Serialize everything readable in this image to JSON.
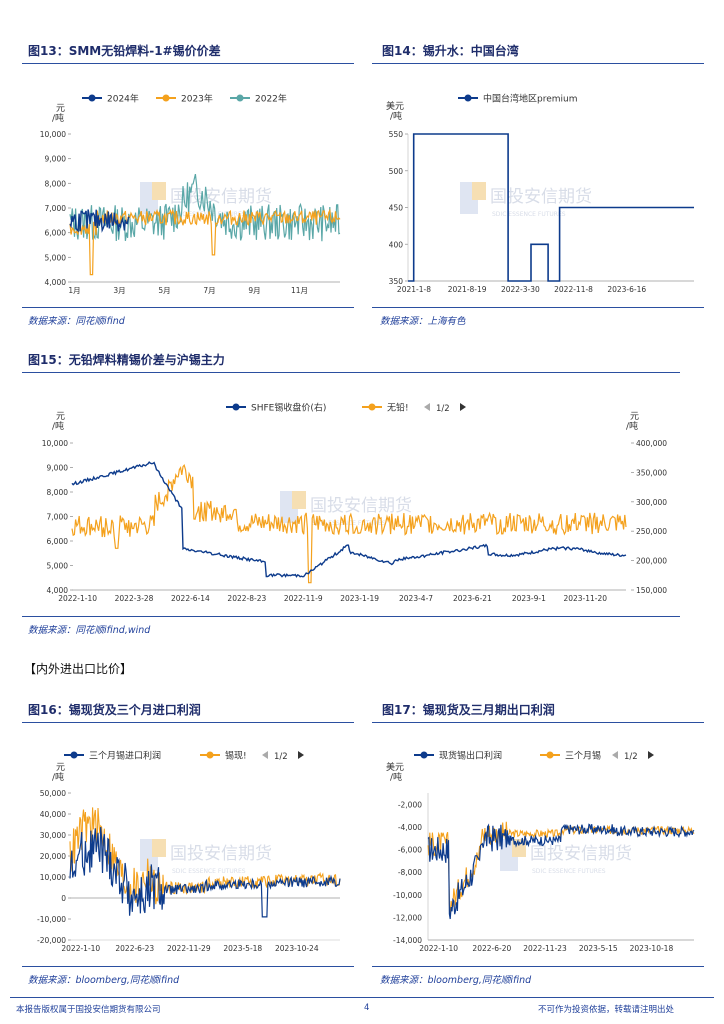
{
  "colors": {
    "navy": "#0d3b8c",
    "orange": "#f4a11d",
    "teal": "#5aa7a7",
    "axis": "#888888",
    "text": "#333333",
    "blue": "#2b4fa0"
  },
  "watermark": {
    "cn": "国投安信期货",
    "en": "SDIC ESSENCE FUTURES"
  },
  "fig13": {
    "title": "图13：SMM无铅焊料-1#锡价价差",
    "source": "数据来源：同花顺ifind",
    "chart_data": {
      "type": "line",
      "unit_lines": [
        "元",
        "/吨"
      ],
      "series": [
        {
          "name": "2024年",
          "color": "#0d3b8c"
        },
        {
          "name": "2023年",
          "color": "#f4a11d"
        },
        {
          "name": "2022年",
          "color": "#5aa7a7"
        }
      ],
      "y_ticks": [
        "10,000",
        "9,000",
        "8,000",
        "7,000",
        "6,000",
        "5,000",
        "4,000"
      ],
      "ylim": [
        4000,
        10000
      ],
      "x_ticks": [
        "1月",
        "3月",
        "5月",
        "7月",
        "9月",
        "11月"
      ]
    }
  },
  "fig14": {
    "title": "图14：锡升水：中国台湾",
    "source": "数据来源：上海有色",
    "chart_data": {
      "type": "line",
      "unit_lines": [
        "美元",
        "/吨"
      ],
      "series": [
        {
          "name": "中国台湾地区premium",
          "color": "#0d3b8c"
        }
      ],
      "y_ticks": [
        "550",
        "500",
        "450",
        "400",
        "350"
      ],
      "ylim": [
        350,
        550
      ],
      "x_ticks": [
        "2021-1-8",
        "2021-8-19",
        "2022-3-30",
        "2022-11-8",
        "2023-6-16"
      ],
      "steps": [
        [
          0,
          350
        ],
        [
          0.02,
          350
        ],
        [
          0.02,
          550
        ],
        [
          0.35,
          550
        ],
        [
          0.35,
          350
        ],
        [
          0.43,
          350
        ],
        [
          0.43,
          400
        ],
        [
          0.49,
          400
        ],
        [
          0.49,
          350
        ],
        [
          0.53,
          350
        ],
        [
          0.53,
          450
        ],
        [
          1,
          450
        ]
      ]
    }
  },
  "fig15": {
    "title": "图15：无铅焊料精锡价差与沪锡主力",
    "source": "数据来源：同花顺ifind,wind",
    "chart_data": {
      "type": "line",
      "unit_left": [
        "元",
        "/吨"
      ],
      "unit_right": [
        "元",
        "/吨"
      ],
      "legend": {
        "s1": "SHFE锡收盘价(右)",
        "s2": "无铅!",
        "page": "1/2"
      },
      "y_ticks_left": [
        "10,000",
        "9,000",
        "8,000",
        "7,000",
        "6,000",
        "5,000",
        "4,000"
      ],
      "ylim_left": [
        4000,
        10000
      ],
      "y_ticks_right": [
        "400,000",
        "350,000",
        "300,000",
        "250,000",
        "200,000",
        "150,000"
      ],
      "ylim_right": [
        150000,
        400000
      ],
      "x_ticks": [
        "2022-1-10",
        "2022-3-28",
        "2022-6-14",
        "2022-8-23",
        "2022-11-9",
        "2023-1-19",
        "2023-4-7",
        "2023-6-21",
        "2023-9-1",
        "2023-11-20"
      ]
    }
  },
  "section_label": "【内外进出口比价】",
  "fig16": {
    "title": "图16：锡现货及三个月进口利润",
    "source": "数据来源：bloomberg,同花顺ifind",
    "chart_data": {
      "type": "line",
      "unit_lines": [
        "元",
        "/吨"
      ],
      "legend": {
        "s1": "三个月锡进口利润",
        "s2": "锡现!",
        "page": "1/2"
      },
      "y_ticks": [
        "50,000",
        "40,000",
        "30,000",
        "20,000",
        "10,000",
        "0",
        "-10,000",
        "-20,000"
      ],
      "ylim": [
        -20000,
        50000
      ],
      "x_ticks": [
        "2022-1-10",
        "2022-6-23",
        "2022-11-29",
        "2023-5-18",
        "2023-10-24"
      ]
    }
  },
  "fig17": {
    "title": "图17：锡现货及三月期出口利润",
    "source": "数据来源：bloomberg,同花顺ifind",
    "chart_data": {
      "type": "line",
      "unit_lines": [
        "美元",
        "/吨"
      ],
      "legend": {
        "s1": "现货锡出口利润",
        "s2": "三个月锡",
        "page": "1/2"
      },
      "y_ticks": [
        "-2,000",
        "-4,000",
        "-6,000",
        "-8,000",
        "-10,000",
        "-12,000",
        "-14,000"
      ],
      "ylim": [
        -14000,
        -1000
      ],
      "x_ticks": [
        "2022-1-10",
        "2022-6-20",
        "2022-11-23",
        "2023-5-15",
        "2023-10-18"
      ]
    }
  },
  "footer": {
    "left": "本报告版权属于国投安信期货有限公司",
    "page": "4",
    "right": "不可作为投资依据，转载请注明出处"
  }
}
